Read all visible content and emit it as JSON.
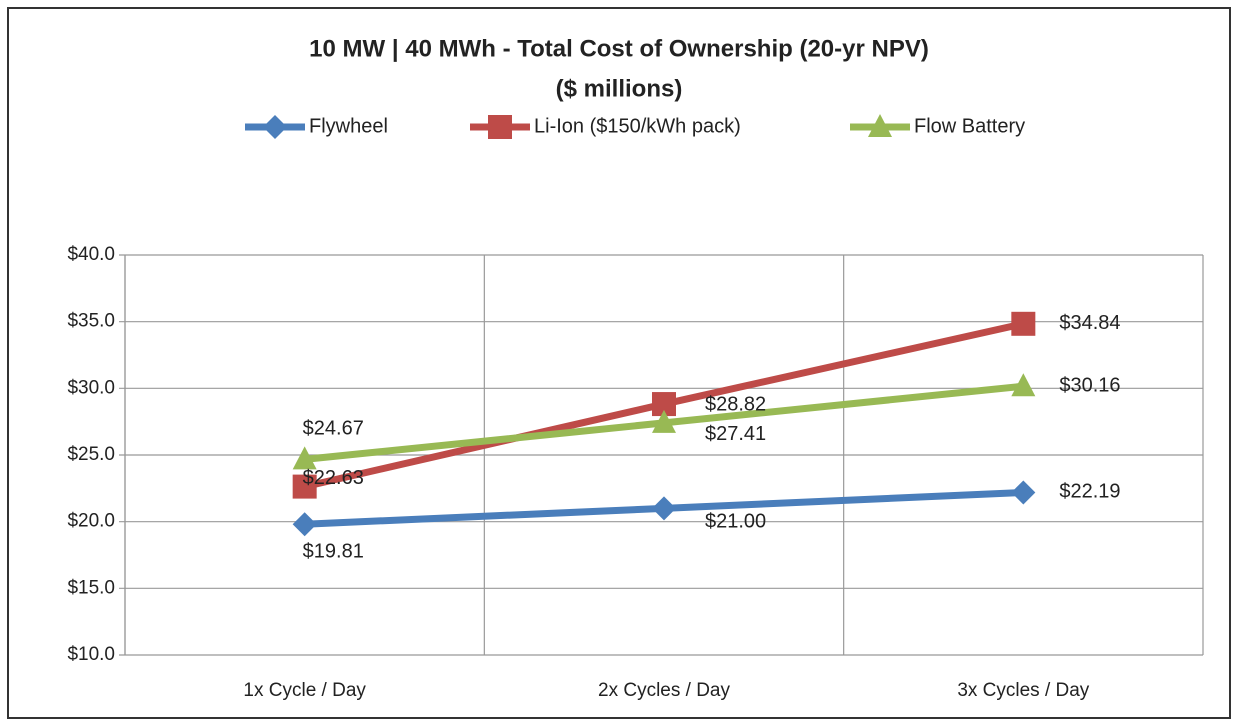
{
  "chart_data": {
    "type": "line",
    "title": "10 MW | 40 MWh - Total Cost of Ownership (20-yr NPV)",
    "subtitle": "($ millions)",
    "categories": [
      "1x Cycle / Day",
      "2x Cycles / Day",
      "3x Cycles / Day"
    ],
    "series": [
      {
        "name": "Flywheel",
        "color": "#4a7ebb",
        "marker": "diamond",
        "values": [
          19.81,
          21.0,
          22.19
        ],
        "value_labels": [
          "$19.81",
          "$21.00",
          "$22.19"
        ]
      },
      {
        "name": "Li-Ion ($150/kWh pack)",
        "color": "#be4b48",
        "marker": "square",
        "values": [
          22.63,
          28.82,
          34.84
        ],
        "value_labels": [
          "$22.63",
          "$28.82",
          "$34.84"
        ]
      },
      {
        "name": "Flow Battery",
        "color": "#98b954",
        "marker": "triangle",
        "values": [
          24.67,
          27.41,
          30.16
        ],
        "value_labels": [
          "$24.67",
          "$27.41",
          "$30.16"
        ]
      }
    ],
    "ylim": [
      10,
      40
    ],
    "yticks": [
      {
        "value": 10,
        "label": "$10.0"
      },
      {
        "value": 15,
        "label": "$15.0"
      },
      {
        "value": 20,
        "label": "$20.0"
      },
      {
        "value": 25,
        "label": "$25.0"
      },
      {
        "value": 30,
        "label": "$30.0"
      },
      {
        "value": 35,
        "label": "$35.0"
      },
      {
        "value": 40,
        "label": "$40.0"
      }
    ],
    "grid": true,
    "legend": "top"
  }
}
